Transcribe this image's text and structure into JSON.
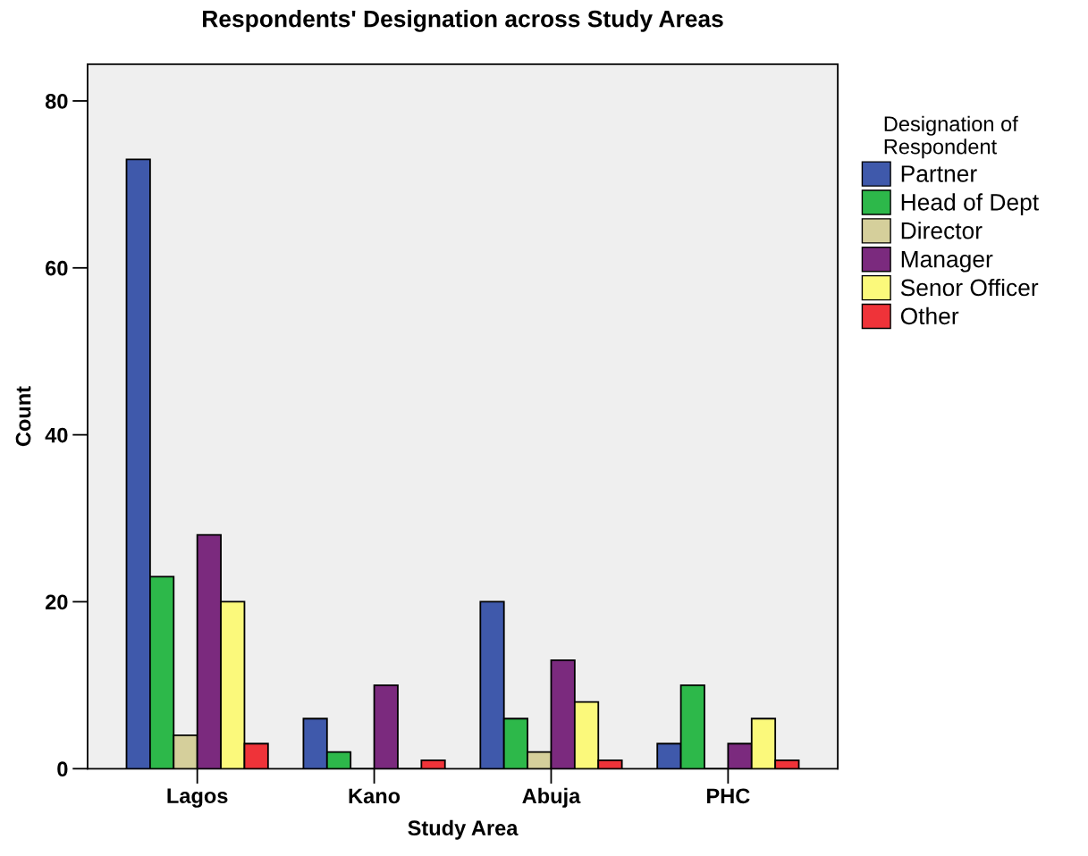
{
  "chart_data": {
    "type": "bar",
    "title": "Respondents' Designation across Study Areas",
    "xlabel": "Study Area",
    "ylabel": "Count",
    "legend_title": "Designation of\nRespondent",
    "categories": [
      "Lagos",
      "Kano",
      "Abuja",
      "PHC"
    ],
    "series": [
      {
        "name": "Partner",
        "color": "#3f59ab",
        "values": [
          73,
          6,
          20,
          3
        ]
      },
      {
        "name": "Head of Dept",
        "color": "#2db84a",
        "values": [
          23,
          2,
          6,
          10
        ]
      },
      {
        "name": "Director",
        "color": "#d5cf9b",
        "values": [
          4,
          0,
          2,
          0
        ]
      },
      {
        "name": "Manager",
        "color": "#7b2a7e",
        "values": [
          28,
          10,
          13,
          3
        ]
      },
      {
        "name": "Senor Officer",
        "color": "#fbf97b",
        "values": [
          20,
          0,
          8,
          6
        ]
      },
      {
        "name": "Other",
        "color": "#ef3339",
        "values": [
          3,
          1,
          1,
          1
        ]
      }
    ],
    "ylim": [
      0,
      84.4
    ],
    "yticks": [
      0,
      20,
      40,
      60,
      80
    ],
    "grid": false,
    "legend": "right"
  }
}
